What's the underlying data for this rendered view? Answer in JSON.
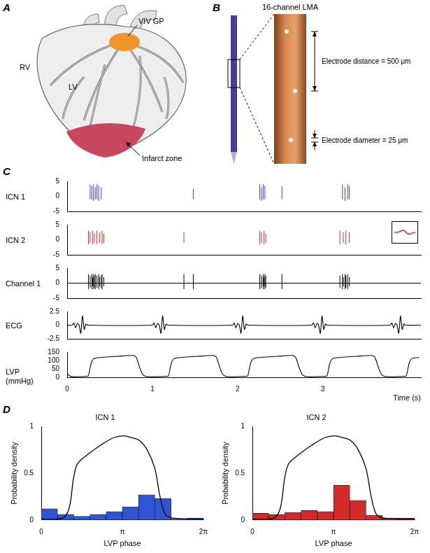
{
  "panel_labels": [
    "A",
    "B",
    "C",
    "D"
  ],
  "heart_diagram": {
    "viv_gp": "VIV GP",
    "rv": "RV",
    "lv": "LV",
    "infarct": "Infarct zone"
  },
  "electrode": {
    "title": "16-channel LMA",
    "distance_label": "Electrode distance = 500 μm",
    "diameter_label": "Electrode diameter = 25 μm"
  },
  "chart_data": [
    {
      "type": "spikes",
      "title": "ICN 1",
      "color": "#2f47d6",
      "xlim": [
        0,
        4.15
      ],
      "ylim": [
        -5,
        5
      ],
      "yticks": [
        -5,
        0,
        5
      ],
      "tick_labels": "y",
      "spikes": {
        "times": [
          0.27,
          0.29,
          0.31,
          0.33,
          0.35,
          0.37,
          0.4,
          1.48,
          2.26,
          2.28,
          2.3,
          2.32,
          2.52,
          3.23,
          3.26,
          3.29,
          3.31
        ],
        "max": [
          4,
          3.5,
          4,
          3,
          4,
          3.5,
          3,
          2.5,
          4,
          3,
          4,
          3.5,
          3.5,
          4,
          3,
          4,
          3.5
        ],
        "min": [
          -1,
          -1,
          -1.5,
          -1,
          -1,
          -1.5,
          -1,
          -1,
          -1,
          -1.5,
          -1,
          -1,
          -1,
          -1,
          -1.5,
          -1,
          -1
        ]
      }
    },
    {
      "type": "spikes",
      "title": "ICN 2",
      "color": "#d62a2a",
      "xlim": [
        0,
        4.15
      ],
      "ylim": [
        -5,
        5
      ],
      "yticks": [
        -5,
        0,
        5
      ],
      "tick_labels": "y",
      "spikes": {
        "times": [
          0.25,
          0.27,
          0.3,
          0.32,
          0.35,
          0.38,
          0.41,
          0.43,
          1.37,
          2.26,
          2.28,
          2.31,
          2.33,
          3.2,
          3.24,
          3.27,
          3.31
        ],
        "max": [
          3,
          2.5,
          3,
          2,
          3,
          2.5,
          3,
          2,
          2.5,
          3,
          2.5,
          3,
          2,
          3,
          2.5,
          3,
          2.5
        ],
        "min": [
          -1.5,
          -1,
          -1.5,
          -1,
          -1.5,
          -1,
          -1.5,
          -1,
          -1,
          -1.5,
          -1,
          -1.5,
          -1,
          -1.5,
          -1,
          -1.5,
          -1
        ]
      },
      "inset": {
        "type": "line",
        "color": "#d62a2a",
        "values": [
          0,
          0.2,
          0.5,
          1.5,
          2.5,
          1.5,
          -1,
          -2,
          -1.2,
          -0.4,
          0
        ]
      }
    },
    {
      "type": "spikes",
      "title": "Channel 1",
      "color": "#000000",
      "xlim": [
        0,
        4.15
      ],
      "ylim": [
        -5,
        5
      ],
      "yticks": [
        -5,
        0,
        5
      ],
      "tick_labels": "y",
      "spikes": {
        "times": [
          0.25,
          0.27,
          0.29,
          0.3,
          0.31,
          0.32,
          0.33,
          0.35,
          0.37,
          0.38,
          0.4,
          0.41,
          0.43,
          1.37,
          1.48,
          2.26,
          2.28,
          2.3,
          2.31,
          2.32,
          2.33,
          2.52,
          3.2,
          3.23,
          3.24,
          3.26,
          3.27,
          3.29,
          3.31
        ],
        "max": [
          3,
          2.5,
          3,
          2,
          3,
          2.5,
          3,
          2.5,
          3,
          2,
          2.5,
          3,
          2,
          3,
          3,
          3,
          2.5,
          3,
          2,
          3,
          2.5,
          3,
          2.5,
          3,
          2,
          3,
          2.5,
          3,
          2
        ],
        "min": [
          -2,
          -1.5,
          -2,
          -1,
          -2,
          -1.5,
          -2,
          -1.5,
          -2,
          -1,
          -1.5,
          -2,
          -1,
          -2,
          -2,
          -2,
          -1.5,
          -2,
          -1,
          -2,
          -1.5,
          -2,
          -1.5,
          -2,
          -1,
          -2,
          -1.5,
          -2,
          -1
        ]
      },
      "trace": {
        "x": [
          0,
          4.15
        ],
        "values": [
          0,
          0
        ]
      }
    },
    {
      "type": "line",
      "title": "ECG",
      "color": "#000000",
      "xlim": [
        0,
        4.15
      ],
      "ylim": [
        -2.5,
        2.5
      ],
      "yticks": [
        -2.5,
        0,
        2.5
      ],
      "tick_labels": "y",
      "x": [
        0,
        0.06,
        0.08,
        0.1,
        0.12,
        0.14,
        0.16,
        0.18,
        0.2,
        0.22,
        0.24,
        1.0,
        1.02,
        1.04,
        1.06,
        1.08,
        1.1,
        1.12,
        1.14,
        1.16,
        1.18,
        1.94,
        1.96,
        1.98,
        2.0,
        2.02,
        2.04,
        2.06,
        2.08,
        2.1,
        2.12,
        2.87,
        2.89,
        2.91,
        2.93,
        2.95,
        2.97,
        2.99,
        3.01,
        3.03,
        3.05,
        3.79,
        3.81,
        3.83,
        3.85,
        3.87,
        3.89,
        3.91,
        3.93,
        3.95,
        3.97,
        4.15
      ],
      "values": [
        0,
        0,
        0.4,
        -0.5,
        0.3,
        0,
        -1.5,
        1.7,
        -0.8,
        0.2,
        0,
        0,
        0.4,
        -0.5,
        0.3,
        0,
        -1.5,
        1.7,
        -0.8,
        0.2,
        0,
        0,
        0.4,
        -0.5,
        0.3,
        0,
        -1.5,
        1.7,
        -0.8,
        0.2,
        0,
        0,
        0.4,
        -0.5,
        0.3,
        0,
        -1.5,
        1.7,
        -0.8,
        0.2,
        0,
        0,
        0.4,
        -0.5,
        0.3,
        0,
        -1.5,
        1.7,
        -0.8,
        0.2,
        0,
        0
      ]
    },
    {
      "type": "line",
      "title": "LVP (mmHg)",
      "x_label": "Time (s)",
      "color": "#000000",
      "xlim": [
        0,
        4.15
      ],
      "ylim": [
        0,
        150
      ],
      "yticks": [
        0,
        50,
        100,
        150
      ],
      "xticks": [
        0,
        1,
        2,
        3
      ],
      "x": [
        0,
        0.03,
        0.08,
        0.23,
        0.25,
        0.28,
        0.31,
        0.4,
        0.6,
        0.77,
        0.81,
        0.85,
        0.89,
        0.95,
        1.17,
        1.19,
        1.22,
        1.25,
        1.34,
        1.54,
        1.71,
        1.75,
        1.79,
        1.83,
        1.89,
        2.1,
        2.12,
        2.15,
        2.18,
        2.27,
        2.47,
        2.64,
        2.68,
        2.72,
        2.76,
        2.82,
        3.03,
        3.05,
        3.08,
        3.11,
        3.2,
        3.4,
        3.57,
        3.61,
        3.65,
        3.69,
        3.75,
        3.96,
        3.98,
        4.01,
        4.04,
        4.13
      ],
      "values": [
        25,
        8,
        3,
        6,
        10,
        80,
        110,
        118,
        125,
        130,
        120,
        60,
        15,
        4,
        6,
        10,
        80,
        110,
        118,
        125,
        130,
        120,
        60,
        15,
        4,
        6,
        10,
        80,
        110,
        118,
        125,
        130,
        120,
        60,
        15,
        4,
        6,
        10,
        80,
        110,
        118,
        125,
        130,
        120,
        60,
        15,
        4,
        6,
        10,
        80,
        110,
        118
      ]
    },
    {
      "type": "histogram",
      "title": "ICN 1",
      "x_label": "LVP phase",
      "y_label": "Probability density",
      "color": "#2f55d4",
      "bins": [
        0,
        0.6283,
        1.2566,
        1.885,
        2.5133,
        3.1416,
        3.7699,
        4.3982,
        5.0265,
        5.6549,
        6.2832
      ],
      "values": [
        0.12,
        0.06,
        0.04,
        0.06,
        0.09,
        0.14,
        0.27,
        0.23,
        0.01,
        0.02
      ],
      "xlim": [
        0,
        6.2832
      ],
      "xticks": [
        0,
        {
          "value": 3.1416,
          "label": "π"
        },
        {
          "value": 6.2832,
          "label": "2π"
        }
      ],
      "ylim": [
        0,
        1
      ],
      "yticks": [
        0,
        0.5,
        1
      ],
      "overlay": {
        "type": "line",
        "color": "#000000",
        "x": [
          0,
          0.6,
          0.9,
          1.1,
          1.25,
          1.4,
          1.8,
          2.3,
          2.8,
          3.2,
          3.5,
          3.8,
          4.1,
          4.4,
          4.6,
          4.8,
          5.1,
          6.2832
        ],
        "values": [
          0.01,
          0.01,
          0.03,
          0.15,
          0.45,
          0.6,
          0.7,
          0.8,
          0.88,
          0.9,
          0.88,
          0.85,
          0.75,
          0.55,
          0.25,
          0.06,
          0.02,
          0.01
        ]
      }
    },
    {
      "type": "histogram",
      "title": "ICN 2",
      "x_label": "LVP phase",
      "y_label": "Probability density",
      "color": "#d42a2a",
      "bins": [
        0,
        0.6283,
        1.2566,
        1.885,
        2.5133,
        3.1416,
        3.7699,
        4.3982,
        5.0265,
        5.6549,
        6.2832
      ],
      "values": [
        0.07,
        0.06,
        0.08,
        0.1,
        0.09,
        0.37,
        0.21,
        0.05,
        0.02,
        0.02
      ],
      "xlim": [
        0,
        6.2832
      ],
      "xticks": [
        0,
        {
          "value": 3.1416,
          "label": "π"
        },
        {
          "value": 6.2832,
          "label": "2π"
        }
      ],
      "ylim": [
        0,
        1
      ],
      "yticks": [
        0,
        0.5,
        1
      ],
      "overlay": {
        "type": "line",
        "color": "#000000",
        "x": [
          0,
          0.6,
          0.9,
          1.1,
          1.25,
          1.4,
          1.8,
          2.3,
          2.8,
          3.2,
          3.5,
          3.8,
          4.1,
          4.4,
          4.6,
          4.8,
          5.1,
          6.2832
        ],
        "values": [
          0.01,
          0.01,
          0.03,
          0.15,
          0.45,
          0.6,
          0.7,
          0.8,
          0.88,
          0.9,
          0.88,
          0.85,
          0.75,
          0.55,
          0.25,
          0.06,
          0.02,
          0.01
        ]
      }
    }
  ]
}
